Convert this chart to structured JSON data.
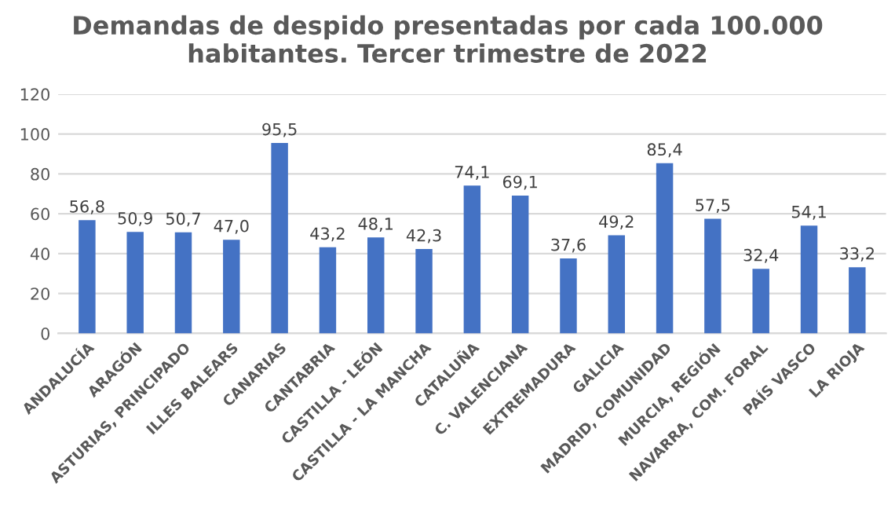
{
  "chart_data": {
    "type": "bar",
    "title": "Demandas de despido presentadas por cada 100.000 habitantes. Tercer trimestre de 2022",
    "categories": [
      "ANDALUCÍA",
      "ARAGÓN",
      "ASTURIAS, PRINCIPADO",
      "ILLES BALEARS",
      "CANARIAS",
      "CANTABRIA",
      "CASTILLA - LEÓN",
      "CASTILLA - LA MANCHA",
      "CATALUÑA",
      "C. VALENCIANA",
      "EXTREMADURA",
      "GALICIA",
      "MADRID, COMUNIDAD",
      "MURCIA, REGIÓN",
      "NAVARRA, COM. FORAL",
      "PAÍS VASCO",
      "LA RIOJA"
    ],
    "values": [
      56.8,
      50.9,
      50.7,
      47.0,
      95.5,
      43.2,
      48.1,
      42.3,
      74.1,
      69.1,
      37.6,
      49.2,
      85.4,
      57.5,
      32.4,
      54.1,
      33.2
    ],
    "value_labels": [
      "56,8",
      "50,9",
      "50,7",
      "47,0",
      "95,5",
      "43,2",
      "48,1",
      "42,3",
      "74,1",
      "69,1",
      "37,6",
      "49,2",
      "85,4",
      "57,5",
      "32,4",
      "54,1",
      "33,2"
    ],
    "color": "#4472c4",
    "ylim": [
      0,
      120
    ],
    "yticks": [
      0,
      20,
      40,
      60,
      80,
      100,
      120
    ],
    "grid": "y"
  }
}
